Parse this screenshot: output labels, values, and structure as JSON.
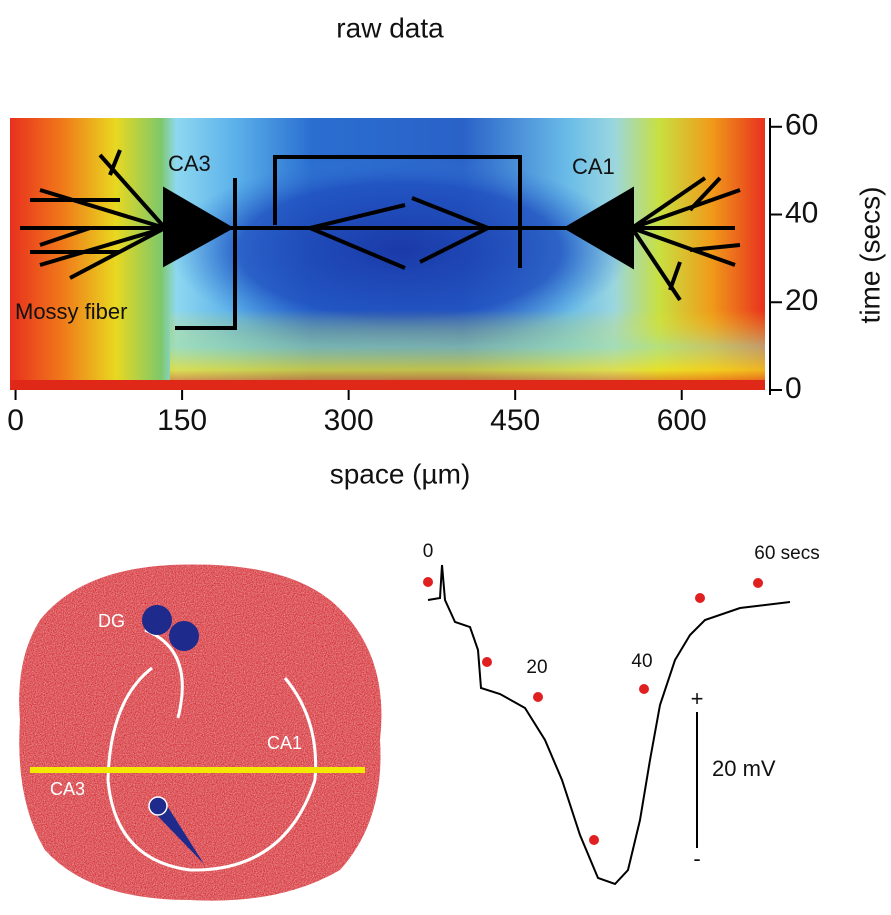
{
  "title": "raw data",
  "heatmap": {
    "x_label": "space (µm)",
    "y_label": "time (secs)",
    "xlim": [
      -5,
      675
    ],
    "xticks": [
      0,
      150,
      300,
      450,
      600
    ],
    "ylim": [
      0,
      62
    ],
    "yticks": [
      0,
      20,
      40,
      60
    ],
    "annotations": [
      "CA3",
      "CA1",
      "Mossy fiber"
    ]
  },
  "slice": {
    "labels": [
      "DG",
      "CA1",
      "CA3"
    ]
  },
  "trace": {
    "time_labels": [
      "0",
      "20",
      "40",
      "60 secs"
    ],
    "scale": {
      "plus": "+",
      "minus": "-",
      "label": "20 mV"
    }
  }
}
